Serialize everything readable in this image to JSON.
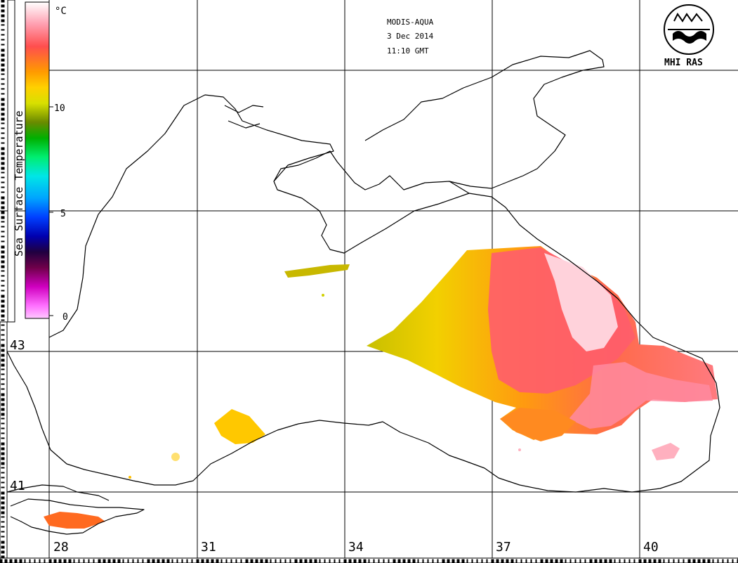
{
  "header": {
    "sensor": "MODIS-AQUA",
    "date": "3 Dec 2014",
    "time": "11:10 GMT"
  },
  "logo": {
    "text": "MHI RAS"
  },
  "colorbar": {
    "title": "Sea Surface Temperature",
    "unit": "°C",
    "ticks": [
      "10",
      "5",
      "0"
    ]
  },
  "axes": {
    "latitude_labels": [
      "43",
      "41"
    ],
    "longitude_labels": [
      "28",
      "31",
      "34",
      "37",
      "40"
    ]
  }
}
